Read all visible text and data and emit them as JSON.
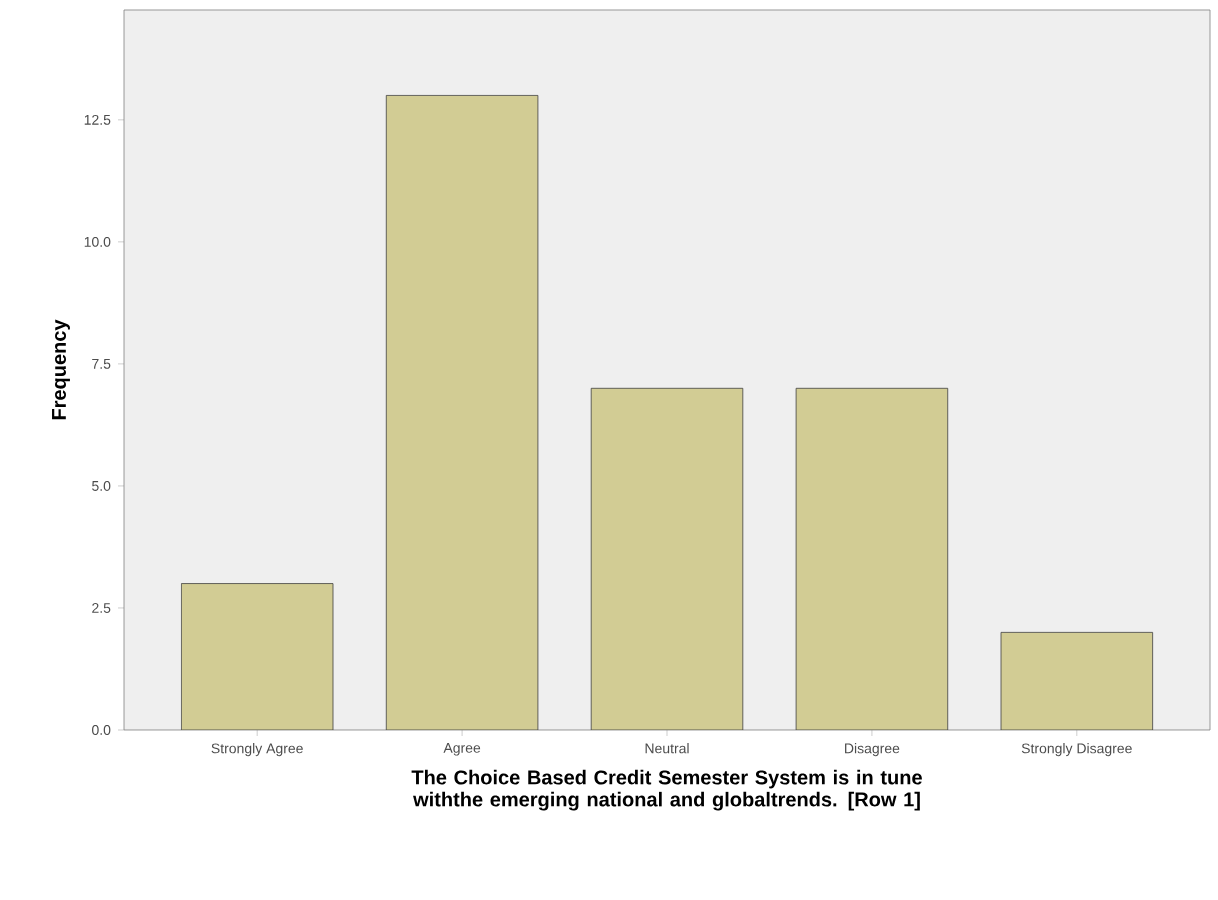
{
  "chart_data": {
    "type": "bar",
    "xlabel": "The Choice Based Credit Semester System is in tune withthe emerging national and globaltrends. [Row 1]",
    "ylabel": "Frequency",
    "categories": [
      "Strongly Agree",
      "Agree",
      "Neutral",
      "Disagree",
      "Strongly Disagree"
    ],
    "values": [
      3,
      13,
      7,
      7,
      2
    ],
    "color": "#d2cc94",
    "ylim": [
      0,
      14.75
    ],
    "yticks": [
      {
        "value": 0,
        "label": "0.0"
      },
      {
        "value": 2.5,
        "label": "2.5"
      },
      {
        "value": 5,
        "label": "5.0"
      },
      {
        "value": 7.5,
        "label": "7.5"
      },
      {
        "value": 10,
        "label": "10.0"
      },
      {
        "value": 12.5,
        "label": "12.5"
      }
    ],
    "grid": false
  }
}
